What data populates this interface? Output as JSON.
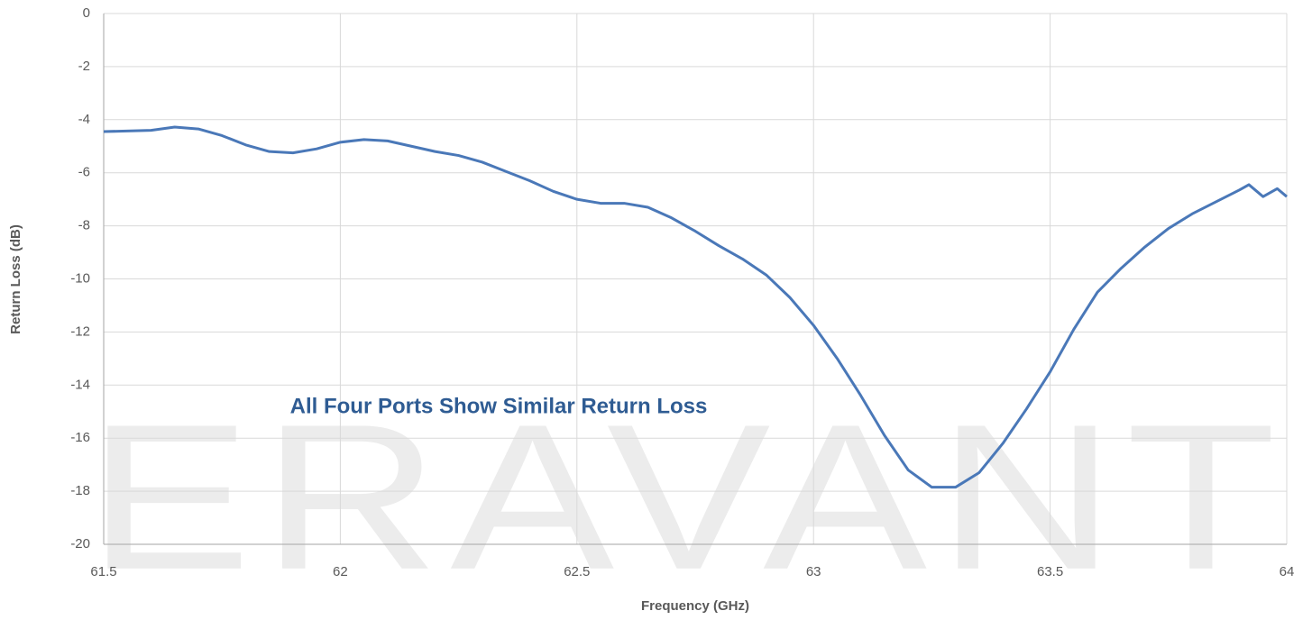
{
  "chart_data": {
    "type": "line",
    "watermark": "ERAVANT",
    "annotation": "All Four Ports Show Similar Return Loss",
    "xlabel": "Frequency (GHz)",
    "ylabel": "Return Loss (dB)",
    "x": [
      61.5,
      61.6,
      61.65,
      61.7,
      61.75,
      61.8,
      61.85,
      61.9,
      61.95,
      62.0,
      62.05,
      62.1,
      62.15,
      62.2,
      62.25,
      62.3,
      62.35,
      62.4,
      62.45,
      62.5,
      62.55,
      62.6,
      62.65,
      62.7,
      62.75,
      62.8,
      62.85,
      62.9,
      62.95,
      63.0,
      63.05,
      63.1,
      63.15,
      63.2,
      63.25,
      63.3,
      63.35,
      63.4,
      63.45,
      63.5,
      63.55,
      63.6,
      63.65,
      63.7,
      63.75,
      63.8,
      63.85,
      63.9,
      63.92,
      63.95,
      63.98,
      64.0
    ],
    "series": [
      {
        "name": "Return Loss",
        "color": "#4a78b8",
        "values": [
          -4.45,
          -4.4,
          -4.28,
          -4.35,
          -4.6,
          -4.95,
          -5.2,
          -5.25,
          -5.1,
          -4.85,
          -4.75,
          -4.8,
          -5.0,
          -5.2,
          -5.35,
          -5.6,
          -5.95,
          -6.3,
          -6.7,
          -7.0,
          -7.15,
          -7.15,
          -7.3,
          -7.7,
          -8.2,
          -8.75,
          -9.25,
          -9.85,
          -10.7,
          -11.75,
          -13.0,
          -14.4,
          -15.9,
          -17.2,
          -17.85,
          -17.85,
          -17.3,
          -16.2,
          -14.9,
          -13.5,
          -11.9,
          -10.5,
          -9.6,
          -8.8,
          -8.1,
          -7.55,
          -7.1,
          -6.65,
          -6.45,
          -6.9,
          -6.6,
          -6.9
        ]
      }
    ],
    "xlim": [
      61.5,
      64
    ],
    "xticks": [
      61.5,
      62,
      62.5,
      63,
      63.5,
      64
    ],
    "ylim": [
      -20,
      0
    ],
    "yticks": [
      0,
      -2,
      -4,
      -6,
      -8,
      -10,
      -12,
      -14,
      -16,
      -18,
      -20
    ],
    "grid": true
  }
}
